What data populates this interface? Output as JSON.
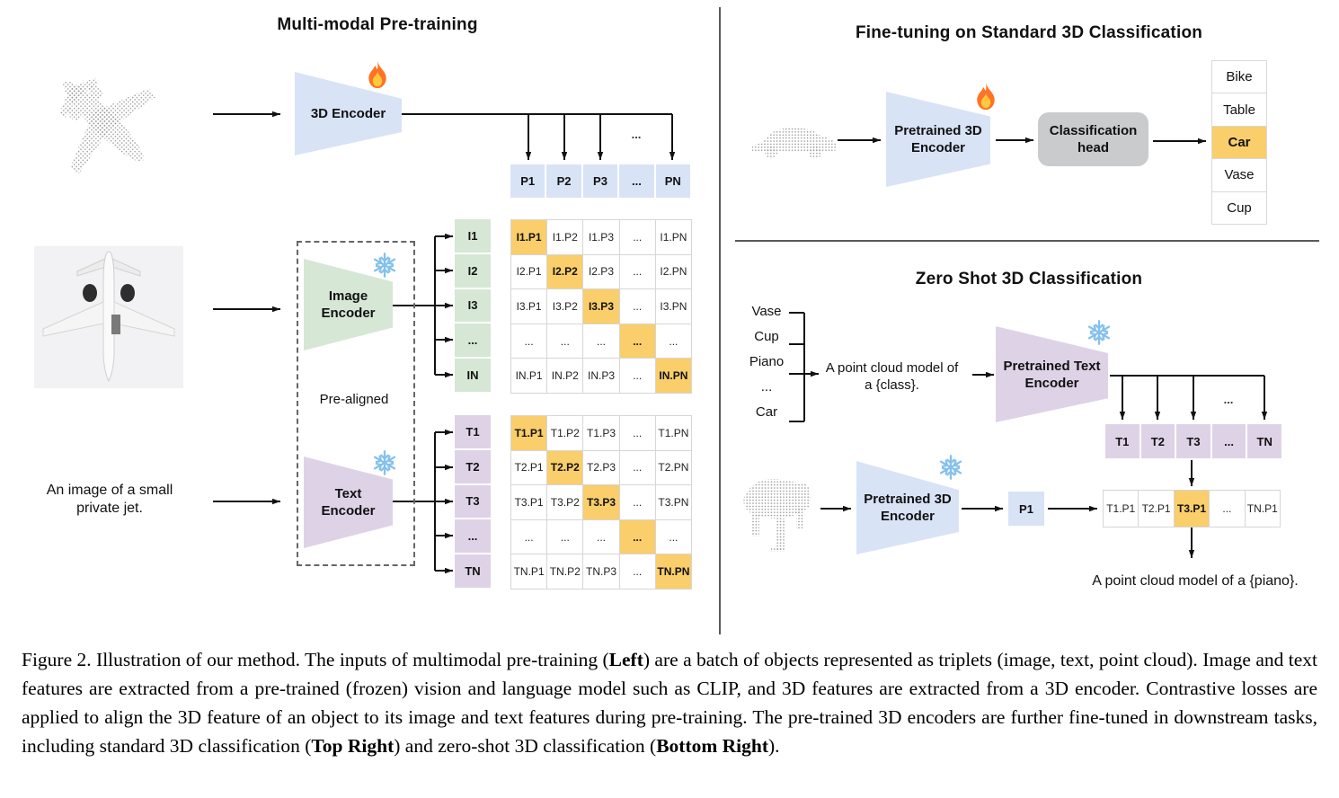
{
  "pretrain": {
    "title": "Multi-modal Pre-training",
    "prealigned_label": "Pre-aligned",
    "input_text": {
      "line1": "An image of a small",
      "line2": "private jet."
    },
    "p_row": [
      "P1",
      "P2",
      "P3",
      "...",
      "PN"
    ],
    "dots_above_pn": "...",
    "i_labels": [
      "I1",
      "I2",
      "I3",
      "...",
      "IN"
    ],
    "i_matrix": [
      [
        "I1.P1",
        "I1.P2",
        "I1.P3",
        "...",
        "I1.PN"
      ],
      [
        "I2.P1",
        "I2.P2",
        "I2.P3",
        "...",
        "I2.PN"
      ],
      [
        "I3.P1",
        "I3.P2",
        "I3.P3",
        "...",
        "I3.PN"
      ],
      [
        "...",
        "...",
        "...",
        "...",
        "..."
      ],
      [
        "IN.P1",
        "IN.P2",
        "IN.P3",
        "...",
        "IN.PN"
      ]
    ],
    "t_labels": [
      "T1",
      "T2",
      "T3",
      "...",
      "TN"
    ],
    "t_matrix": [
      [
        "T1.P1",
        "T1.P2",
        "T1.P3",
        "...",
        "T1.PN"
      ],
      [
        "T2.P1",
        "T2.P2",
        "T2.P3",
        "...",
        "T2.PN"
      ],
      [
        "T3.P1",
        "T3.P2",
        "T3.P3",
        "...",
        "T3.PN"
      ],
      [
        "...",
        "...",
        "...",
        "...",
        "..."
      ],
      [
        "TN.P1",
        "TN.P2",
        "TN.P3",
        "...",
        "TN.PN"
      ]
    ]
  },
  "encoders": {
    "pretrain_3d": {
      "line1": "3D Encoder",
      "line2": ""
    },
    "image": {
      "line1": "Image",
      "line2": "Encoder"
    },
    "text": {
      "line1": "Text",
      "line2": "Encoder"
    },
    "ft_3d": {
      "line1": "Pretrained 3D",
      "line2": "Encoder"
    },
    "zs_text": {
      "line1": "Pretrained Text",
      "line2": "Encoder"
    },
    "zs_3d": {
      "line1": "Pretrained 3D",
      "line2": "Encoder"
    }
  },
  "finetune": {
    "title": "Fine-tuning on Standard 3D Classification",
    "head": {
      "line1": "Classification",
      "line2": "head"
    },
    "classes": [
      "Bike",
      "Table",
      "Car",
      "Vase",
      "Cup"
    ],
    "highlight_index": 2
  },
  "zeroshot": {
    "title": "Zero Shot 3D Classification",
    "class_list": [
      "Vase",
      "Cup",
      "Piano",
      "...",
      "Car"
    ],
    "prompt": {
      "line1": "A point cloud model of",
      "line2": "a {class}."
    },
    "t_row": [
      "T1",
      "T2",
      "T3",
      "...",
      "TN"
    ],
    "dots_above_tn": "...",
    "p_box": "P1",
    "sim_row": [
      "T1.P1",
      "T2.P1",
      "T3.P1",
      "...",
      "TN.P1"
    ],
    "sim_highlight_index": 2,
    "result": "A point cloud model of a {piano}."
  },
  "icons": {
    "trainable": "fire-icon",
    "frozen": "snowflake-icon"
  },
  "colors": {
    "highlight_orange": "#F9CE6B",
    "box_blue": "#D9E3F6",
    "box_green": "#D6E7D5",
    "box_purple": "#DED3E6",
    "head_gray": "#C9CBCD",
    "flame_orange": "#FF7324",
    "flame_yellow": "#FFC83D",
    "snow_blue": "#85C1EC",
    "point_cloud_gray": "#8F8F8F"
  },
  "caption": {
    "segments": [
      {
        "t": "Figure 2. Illustration of our method. The inputs of multimodal pre-training (",
        "b": 0
      },
      {
        "t": "Left",
        "b": 1
      },
      {
        "t": ") are a batch of objects represented as triplets (image, text, point cloud). Image and text features are extracted from a pre-trained (frozen) vision and language model such as CLIP, and 3D features are extracted from a 3D encoder. Contrastive losses are applied to align the 3D feature of an object to its image and text features during pre-training. The pre-trained 3D encoders are further fine-tuned in downstream tasks, including standard 3D classification (",
        "b": 0
      },
      {
        "t": "Top Right",
        "b": 1
      },
      {
        "t": ") and zero-shot 3D classification (",
        "b": 0
      },
      {
        "t": "Bottom Right",
        "b": 1
      },
      {
        "t": ").",
        "b": 0
      }
    ]
  }
}
